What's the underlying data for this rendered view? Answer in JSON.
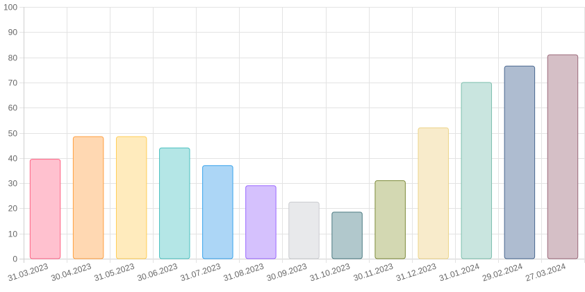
{
  "chart_data": {
    "type": "bar",
    "title": "",
    "xlabel": "",
    "ylabel": "",
    "ylim": [
      0,
      100
    ],
    "yticks": [
      0,
      10,
      20,
      30,
      40,
      50,
      60,
      70,
      80,
      90,
      100
    ],
    "grid": true,
    "legend": "none",
    "categories": [
      "31.03.2023",
      "30.04.2023",
      "31.05.2023",
      "30.06.2023",
      "31.07.2023",
      "31.08.2023",
      "30.09.2023",
      "31.10.2023",
      "30.11.2023",
      "31.12.2023",
      "31.01.2024",
      "29.02.2024",
      "27.03.2024"
    ],
    "values": [
      39.5,
      48.5,
      48.5,
      44,
      37,
      29,
      22.5,
      18.5,
      31,
      52,
      70,
      76.5,
      81
    ],
    "bar_colors": [
      {
        "fill": "#ffc1cf",
        "stroke": "#ff6384"
      },
      {
        "fill": "#ffd8b2",
        "stroke": "#ff9f40"
      },
      {
        "fill": "#ffebbd",
        "stroke": "#ffcd56"
      },
      {
        "fill": "#b4e6e6",
        "stroke": "#4bc0c0"
      },
      {
        "fill": "#acd6f6",
        "stroke": "#36a2eb"
      },
      {
        "fill": "#d5c1fd",
        "stroke": "#9966ff"
      },
      {
        "fill": "#e8e9eb",
        "stroke": "#c9cbcf"
      },
      {
        "fill": "#b1c8cc",
        "stroke": "#4a7a80"
      },
      {
        "fill": "#d3d8b2",
        "stroke": "#7d8a3a"
      },
      {
        "fill": "#f8ebcb",
        "stroke": "#ecd58a"
      },
      {
        "fill": "#c9e5df",
        "stroke": "#7dbfae"
      },
      {
        "fill": "#aebcd0",
        "stroke": "#4a6890"
      },
      {
        "fill": "#d5bfc6",
        "stroke": "#9c6a7b"
      }
    ]
  }
}
